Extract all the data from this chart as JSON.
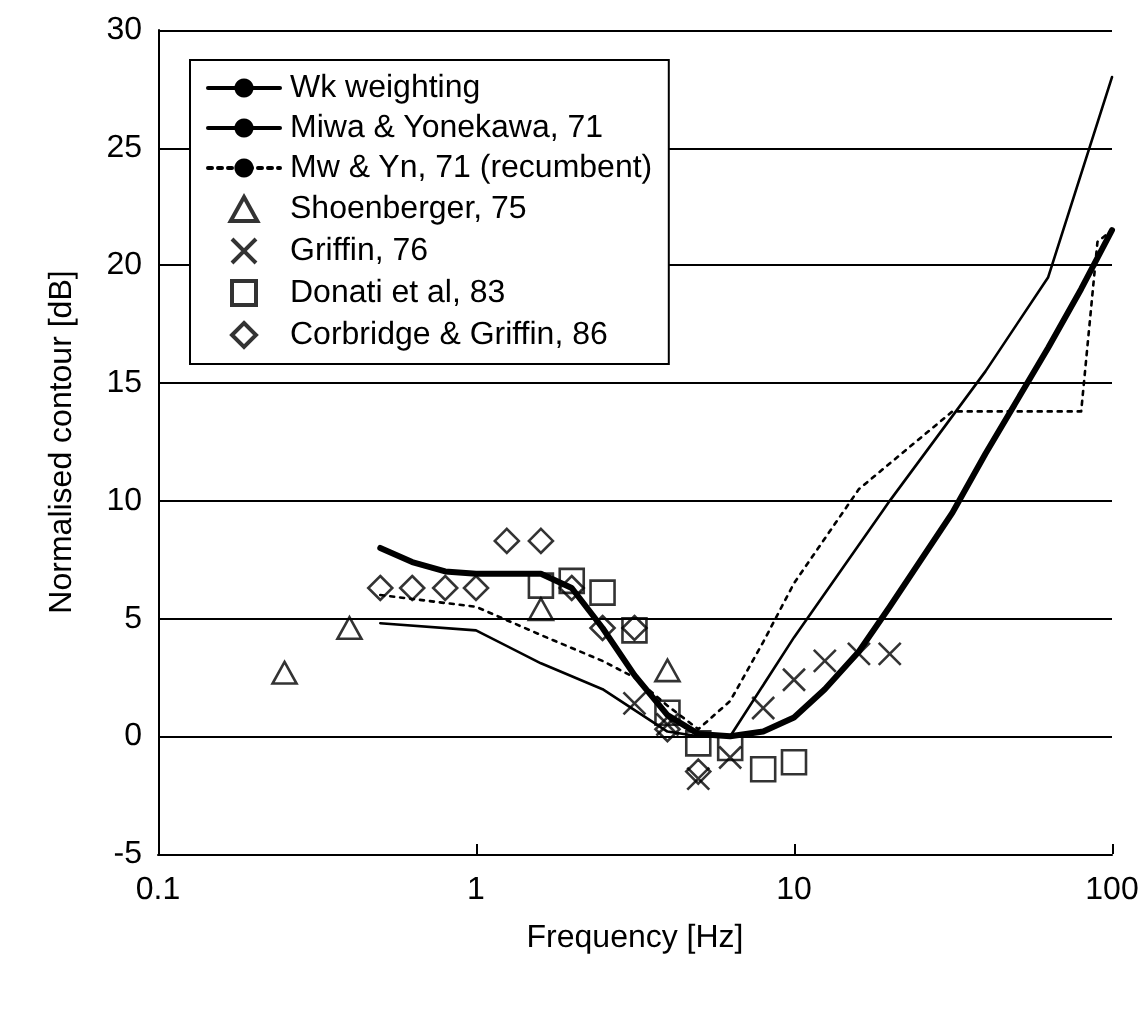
{
  "chart_data": {
    "type": "line",
    "xlabel": "Frequency [Hz]",
    "ylabel": "Normalised contour [dB]",
    "xlim": [
      0.1,
      100
    ],
    "xticks": [
      0.1,
      1,
      10,
      100
    ],
    "ylim": [
      -5,
      30
    ],
    "yticks": [
      -5,
      0,
      5,
      10,
      15,
      20,
      25,
      30
    ],
    "log": "x",
    "grid": "y",
    "legend": "top left",
    "series": [
      {
        "name": "Wk weighting",
        "type": "line",
        "color": "#000000",
        "line_style": "solid",
        "marker": "none",
        "x": [
          0.5,
          0.63,
          0.8,
          1,
          1.25,
          1.6,
          2,
          2.5,
          3.15,
          4,
          5,
          6.3,
          8,
          10,
          12.5,
          16,
          20,
          31.5,
          40,
          63,
          80,
          100
        ],
        "values": [
          8,
          7.4,
          7,
          6.9,
          6.9,
          6.9,
          6.3,
          4.6,
          2.6,
          0.9,
          0.1,
          0,
          0.2,
          0.8,
          2,
          3.6,
          5.5,
          9.5,
          12,
          16.5,
          19,
          21.5
        ]
      },
      {
        "name": "Miwa & Yonekawa, 71",
        "type": "line",
        "color": "#000000",
        "line_style": "solid",
        "marker": "none",
        "x": [
          0.5,
          1,
          1.6,
          2.5,
          4,
          5,
          6.3,
          10,
          20,
          40,
          63,
          100
        ],
        "values": [
          4.8,
          4.5,
          3.1,
          2,
          0.2,
          0,
          0,
          4.2,
          10,
          15.5,
          19.5,
          28
        ]
      },
      {
        "name": "Mw & Yn, 71 (recumbent)",
        "type": "line",
        "color": "#000000",
        "line_style": "dotted",
        "marker": "none",
        "x": [
          0.5,
          1,
          1.6,
          2.5,
          3.15,
          4,
          5,
          6.3,
          8,
          10,
          16,
          31.5,
          80,
          90,
          100
        ],
        "values": [
          6,
          5.5,
          4.3,
          3.2,
          2.5,
          1.3,
          0.3,
          1.5,
          4,
          6.5,
          10.5,
          13.8,
          13.8,
          21,
          21.5
        ]
      },
      {
        "name": "Shoenberger, 75",
        "type": "scatter",
        "color": "#000000",
        "marker": "triangle",
        "x": [
          0.25,
          0.4,
          1.6,
          4
        ],
        "values": [
          2.7,
          4.6,
          5.4,
          2.8
        ]
      },
      {
        "name": "Griffin, 76",
        "type": "scatter",
        "color": "#000000",
        "marker": "cross",
        "x": [
          3.15,
          4,
          5,
          6.3,
          8,
          10,
          12.5,
          16,
          20
        ],
        "values": [
          1.4,
          0.5,
          -1.8,
          -0.9,
          1.2,
          2.4,
          3.2,
          3.5,
          3.5
        ]
      },
      {
        "name": "Donati et al, 83",
        "type": "scatter",
        "color": "#000000",
        "marker": "square",
        "x": [
          1.6,
          2,
          2.5,
          3.15,
          4,
          5,
          6.3,
          8,
          10
        ],
        "values": [
          6.4,
          6.6,
          6.1,
          4.5,
          1,
          -0.3,
          -0.5,
          -1.4,
          -1.1
        ]
      },
      {
        "name": "Corbridge & Griffin, 86",
        "type": "scatter",
        "color": "#000000",
        "marker": "diamond",
        "x": [
          0.5,
          0.63,
          0.8,
          1,
          1.25,
          1.6,
          2,
          2.5,
          3.15,
          4,
          5
        ],
        "values": [
          6.3,
          6.3,
          6.3,
          6.3,
          8.3,
          8.3,
          6.3,
          4.6,
          4.6,
          0.3,
          -1.5
        ]
      }
    ]
  }
}
